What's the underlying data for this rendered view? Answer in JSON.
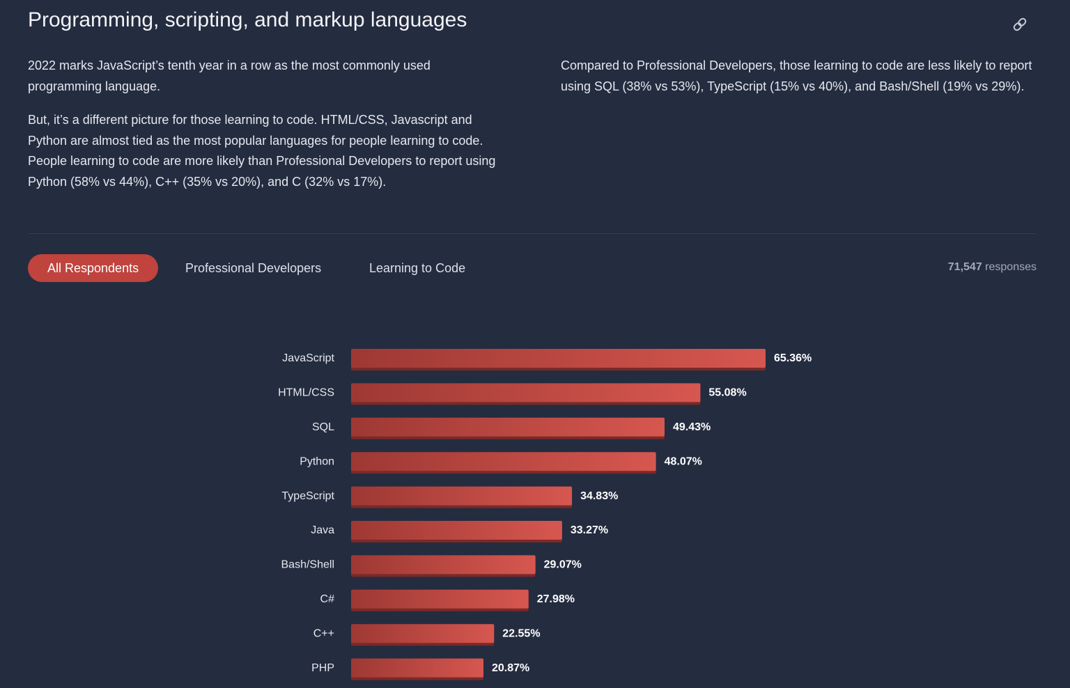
{
  "header": {
    "title": "Programming, scripting, and markup languages"
  },
  "intro": {
    "left": [
      "2022 marks JavaScript’s tenth year in a row as the most commonly used programming language.",
      "But, it’s a different picture for those learning to code. HTML/CSS, Javascript and Python are almost tied as the most popular languages for people learning to code. People learning to code are more likely than Professional Developers to report using Python (58% vs 44%), C++ (35% vs 20%), and C (32% vs 17%)."
    ],
    "right": [
      "Compared to Professional Developers, those learning to code are less likely to report using SQL (38% vs 53%), TypeScript (15% vs 40%), and Bash/Shell (19% vs 29%)."
    ]
  },
  "tabs": [
    "All Respondents",
    "Professional Developers",
    "Learning to Code"
  ],
  "responses": {
    "count": "71,547",
    "label": "responses"
  },
  "chart_data": {
    "type": "bar",
    "orientation": "horizontal",
    "color": "#c8463f",
    "categories": [
      "JavaScript",
      "HTML/CSS",
      "SQL",
      "Python",
      "TypeScript",
      "Java",
      "Bash/Shell",
      "C#",
      "C++",
      "PHP"
    ],
    "values": [
      65.36,
      55.08,
      49.43,
      48.07,
      34.83,
      33.27,
      29.07,
      27.98,
      22.55,
      20.87
    ],
    "value_labels": [
      "65.36%",
      "55.08%",
      "49.43%",
      "48.07%",
      "34.83%",
      "33.27%",
      "29.07%",
      "27.98%",
      "22.55%",
      "20.87%"
    ]
  }
}
